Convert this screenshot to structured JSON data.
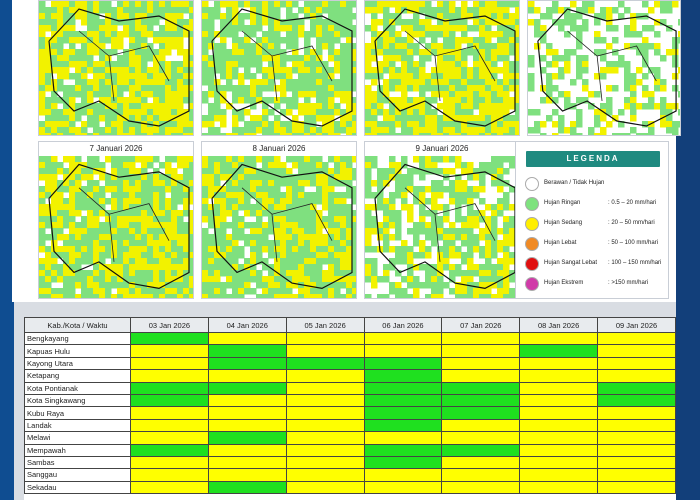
{
  "maps": [
    {
      "title": "",
      "green": 0.45,
      "yellow": 0.45
    },
    {
      "title": "",
      "green": 0.55,
      "yellow": 0.25
    },
    {
      "title": "",
      "green": 0.45,
      "yellow": 0.45
    },
    {
      "title": "",
      "green": 0.35,
      "yellow": 0.1
    },
    {
      "title": "7 Januari 2026",
      "green": 0.5,
      "yellow": 0.4
    },
    {
      "title": "8 Januari 2026",
      "green": 0.6,
      "yellow": 0.3
    },
    {
      "title": "9 Januari 2026",
      "green": 0.45,
      "yellow": 0.25
    }
  ],
  "legend": {
    "title": "LEGENDA",
    "items": [
      {
        "label": "Berawan / Tidak Hujan",
        "range": "",
        "color": "#ffffff"
      },
      {
        "label": "Hujan Ringan",
        "range": ": 0.5 – 20 mm/hari",
        "color": "#7ee27e"
      },
      {
        "label": "Hujan Sedang",
        "range": ": 20 – 50 mm/hari",
        "color": "#ffee00"
      },
      {
        "label": "Hujan Lebat",
        "range": ": 50 – 100 mm/hari",
        "color": "#f08a24"
      },
      {
        "label": "Hujan Sangat Lebat",
        "range": ": 100 – 150 mm/hari",
        "color": "#e01010"
      },
      {
        "label": "Hujan Ekstrem",
        "range": ": >150 mm/hari",
        "color": "#d03ba8"
      }
    ]
  },
  "table": {
    "header": "Kab./Kota / Waktu",
    "dates": [
      "03 Jan 2026",
      "04 Jan 2026",
      "05 Jan 2026",
      "06 Jan 2026",
      "07 Jan 2026",
      "08 Jan 2026",
      "09 Jan 2026"
    ],
    "rows": [
      {
        "name": "Bengkayang",
        "cells": [
          "g",
          "y",
          "y",
          "y",
          "y",
          "y",
          "y"
        ]
      },
      {
        "name": "Kapuas Hulu",
        "cells": [
          "y",
          "g",
          "y",
          "y",
          "y",
          "g",
          "y"
        ]
      },
      {
        "name": "Kayong Utara",
        "cells": [
          "y",
          "g",
          "g",
          "g",
          "y",
          "y",
          "y"
        ]
      },
      {
        "name": "Ketapang",
        "cells": [
          "y",
          "y",
          "y",
          "g",
          "y",
          "y",
          "y"
        ]
      },
      {
        "name": "Kota Pontianak",
        "cells": [
          "g",
          "g",
          "y",
          "g",
          "g",
          "y",
          "g"
        ]
      },
      {
        "name": "Kota Singkawang",
        "cells": [
          "g",
          "y",
          "y",
          "g",
          "g",
          "y",
          "g"
        ]
      },
      {
        "name": "Kubu Raya",
        "cells": [
          "y",
          "y",
          "y",
          "g",
          "g",
          "y",
          "y"
        ]
      },
      {
        "name": "Landak",
        "cells": [
          "y",
          "y",
          "y",
          "g",
          "y",
          "y",
          "y"
        ]
      },
      {
        "name": "Melawi",
        "cells": [
          "y",
          "g",
          "y",
          "y",
          "y",
          "y",
          "y"
        ]
      },
      {
        "name": "Mempawah",
        "cells": [
          "g",
          "y",
          "y",
          "g",
          "g",
          "y",
          "y"
        ]
      },
      {
        "name": "Sambas",
        "cells": [
          "y",
          "y",
          "y",
          "g",
          "y",
          "y",
          "y"
        ]
      },
      {
        "name": "Sanggau",
        "cells": [
          "y",
          "y",
          "y",
          "y",
          "y",
          "y",
          "y"
        ]
      },
      {
        "name": "Sekadau",
        "cells": [
          "y",
          "g",
          "y",
          "y",
          "y",
          "y",
          "y"
        ]
      }
    ]
  }
}
